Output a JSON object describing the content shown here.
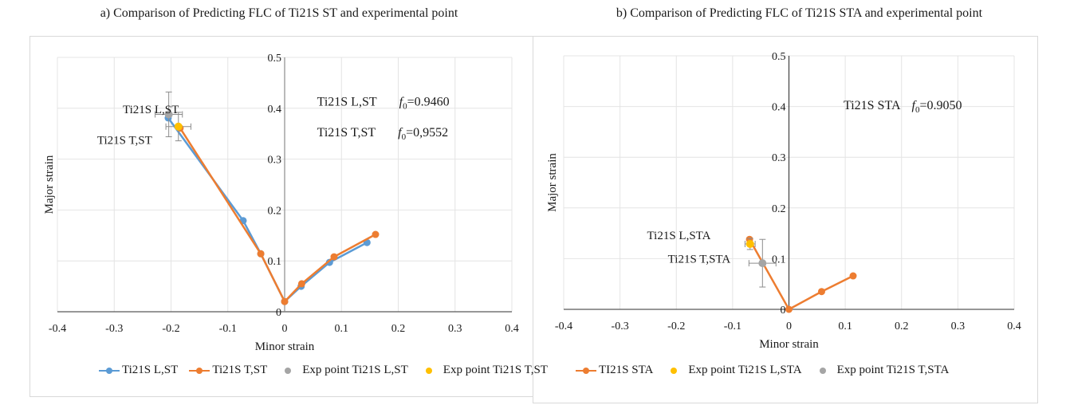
{
  "chart_data": [
    {
      "id": "a",
      "type": "line",
      "title": "a) Comparison of Predicting FLC of Ti21S ST and experimental point",
      "xlabel": "Minor strain",
      "ylabel": "Major strain",
      "xlim": [
        -0.4,
        0.4
      ],
      "ylim": [
        0,
        0.5
      ],
      "xticks": [
        "-0.4",
        "-0.3",
        "-0.2",
        "-0.1",
        "0",
        "0.1",
        "0.2",
        "0.3",
        "0.4"
      ],
      "yticks": [
        "0",
        "0.1",
        "0.2",
        "0.3",
        "0.4",
        "0.5"
      ],
      "grid": true,
      "legend_position": "bottom",
      "series": [
        {
          "name": "Ti21S L,ST",
          "kind": "line",
          "color": "#5b9bd5",
          "x": [
            -0.205,
            -0.073,
            -0.042,
            0.0,
            0.029,
            0.079,
            0.145
          ],
          "y": [
            0.381,
            0.179,
            0.114,
            0.02,
            0.05,
            0.097,
            0.136
          ]
        },
        {
          "name": "Ti21S T,ST",
          "kind": "line",
          "color": "#ed7d31",
          "x": [
            -0.184,
            -0.042,
            0.0,
            0.03,
            0.087,
            0.16
          ],
          "y": [
            0.361,
            0.114,
            0.02,
            0.055,
            0.108,
            0.152
          ]
        },
        {
          "name": "Exp point Ti21S L,ST",
          "kind": "point",
          "color": "#a5a5a5",
          "x": [
            -0.204
          ],
          "y": [
            0.388
          ],
          "xerr": 0.024,
          "yerr": 0.044
        },
        {
          "name": "Exp point Ti21S T,ST",
          "kind": "point",
          "color": "#ffc000",
          "x": [
            -0.187
          ],
          "y": [
            0.364
          ],
          "xerr": 0.022,
          "yerr": 0.028
        }
      ],
      "annotations": [
        {
          "text": "Ti21S L,ST",
          "x": -0.285,
          "y": 0.39,
          "anchor": "start"
        },
        {
          "text": "Ti21S T,ST",
          "x": -0.33,
          "y": 0.33,
          "anchor": "start"
        },
        {
          "text": "Ti21S L,ST",
          "x": 0.057,
          "y": 0.405,
          "anchor": "start",
          "f0": "0.9460"
        },
        {
          "text": "Ti21S T,ST",
          "x": 0.057,
          "y": 0.345,
          "anchor": "start",
          "f0": "0,9552"
        }
      ]
    },
    {
      "id": "b",
      "type": "line",
      "title": "b) Comparison of Predicting FLC of Ti21S STA and experimental point",
      "xlabel": "Minor strain",
      "ylabel": "Major strain",
      "xlim": [
        -0.4,
        0.4
      ],
      "ylim": [
        0,
        0.5
      ],
      "xticks": [
        "-0.4",
        "-0.3",
        "-0.2",
        "-0.1",
        "0",
        "0.1",
        "0.2",
        "0.3",
        "0.4"
      ],
      "yticks": [
        "0",
        "0.1",
        "0.2",
        "0.3",
        "0.4",
        "0.5"
      ],
      "grid": true,
      "legend_position": "bottom",
      "series": [
        {
          "name": "TI21S STA",
          "kind": "line",
          "color": "#ed7d31",
          "x": [
            -0.07,
            0.0,
            0.058,
            0.114
          ],
          "y": [
            0.138,
            0.0,
            0.035,
            0.066
          ]
        },
        {
          "name": "Exp point Ti21S L,STA",
          "kind": "point",
          "color": "#ffc000",
          "x": [
            -0.069
          ],
          "y": [
            0.129
          ],
          "xerr": 0.009,
          "yerr": 0.011
        },
        {
          "name": "Exp point Ti21S T,STA",
          "kind": "point",
          "color": "#a5a5a5",
          "x": [
            -0.047
          ],
          "y": [
            0.091
          ],
          "xerr": 0.024,
          "yerr": 0.047
        }
      ],
      "annotations": [
        {
          "text": "Ti21S L,STA",
          "x": -0.252,
          "y": 0.138,
          "anchor": "start"
        },
        {
          "text": "Ti21S T,STA",
          "x": -0.215,
          "y": 0.092,
          "anchor": "start"
        },
        {
          "text": "Ti21S STA",
          "x": 0.097,
          "y": 0.395,
          "anchor": "start",
          "f0": "0.9050"
        }
      ]
    }
  ]
}
